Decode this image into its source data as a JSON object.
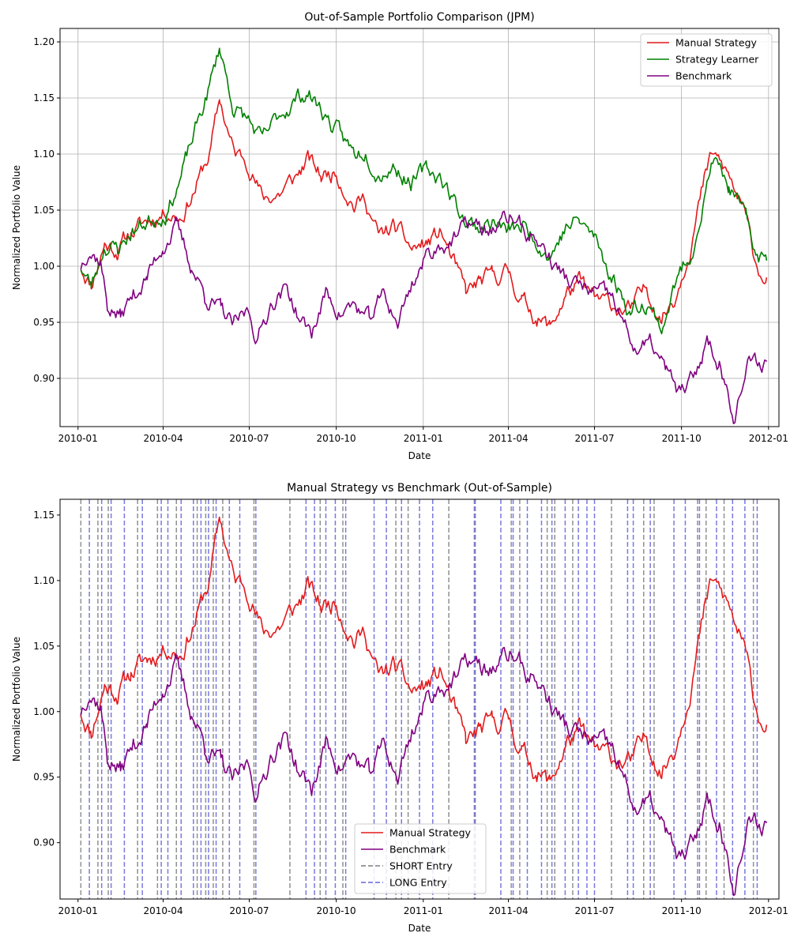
{
  "chart_data": [
    {
      "type": "line",
      "title": "Out-of-Sample Portfolio Comparison (JPM)",
      "xlabel": "Date",
      "ylabel": "Normalized Portfolio Value",
      "x_ticks": [
        "2010-01",
        "2010-04",
        "2010-07",
        "2010-10",
        "2011-01",
        "2011-04",
        "2011-07",
        "2011-10",
        "2012-01"
      ],
      "y_ticks": [
        "0.90",
        "0.95",
        "1.00",
        "1.05",
        "1.10",
        "1.15",
        "1.20"
      ],
      "xlim": [
        "2009-12-13",
        "2012-01-12"
      ],
      "ylim": [
        0.857,
        1.212
      ],
      "grid": true,
      "legend_position": "top-right",
      "series": [
        {
          "name": "Manual Strategy",
          "color": "#e41a1c",
          "points": [
            [
              "2010-01-04",
              1.0
            ],
            [
              "2010-01-15",
              0.985
            ],
            [
              "2010-01-29",
              1.02
            ],
            [
              "2010-02-12",
              1.015
            ],
            [
              "2010-02-26",
              1.03
            ],
            [
              "2010-03-15",
              1.04
            ],
            [
              "2010-04-05",
              1.05
            ],
            [
              "2010-04-20",
              1.045
            ],
            [
              "2010-05-05",
              1.07
            ],
            [
              "2010-05-20",
              1.1
            ],
            [
              "2010-05-31",
              1.148
            ],
            [
              "2010-06-15",
              1.1
            ],
            [
              "2010-06-30",
              1.095
            ],
            [
              "2010-07-15",
              1.06
            ],
            [
              "2010-08-02",
              1.065
            ],
            [
              "2010-08-20",
              1.08
            ],
            [
              "2010-09-01",
              1.095
            ],
            [
              "2010-09-15",
              1.08
            ],
            [
              "2010-10-01",
              1.085
            ],
            [
              "2010-10-20",
              1.055
            ],
            [
              "2010-11-01",
              1.06
            ],
            [
              "2010-11-15",
              1.025
            ],
            [
              "2010-12-01",
              1.035
            ],
            [
              "2010-12-20",
              1.015
            ],
            [
              "2011-01-05",
              1.02
            ],
            [
              "2011-01-20",
              1.03
            ],
            [
              "2011-02-01",
              1.005
            ],
            [
              "2011-02-15",
              0.975
            ],
            [
              "2011-03-01",
              0.985
            ],
            [
              "2011-03-15",
              0.99
            ],
            [
              "2011-04-01",
              0.995
            ],
            [
              "2011-04-15",
              0.97
            ],
            [
              "2011-05-01",
              0.955
            ],
            [
              "2011-05-15",
              0.945
            ],
            [
              "2011-06-01",
              0.975
            ],
            [
              "2011-06-15",
              0.985
            ],
            [
              "2011-07-01",
              0.97
            ],
            [
              "2011-07-20",
              0.965
            ],
            [
              "2011-08-08",
              0.96
            ],
            [
              "2011-08-25",
              0.98
            ],
            [
              "2011-09-10",
              0.955
            ],
            [
              "2011-09-25",
              0.975
            ],
            [
              "2011-10-10",
              1.02
            ],
            [
              "2011-10-25",
              1.075
            ],
            [
              "2011-11-03",
              1.1
            ],
            [
              "2011-11-20",
              1.08
            ],
            [
              "2011-12-05",
              1.05
            ],
            [
              "2011-12-20",
              1.0
            ],
            [
              "2011-12-30",
              0.99
            ]
          ]
        },
        {
          "name": "Strategy Learner",
          "color": "#008000",
          "points": [
            [
              "2010-01-04",
              1.0
            ],
            [
              "2010-01-15",
              0.982
            ],
            [
              "2010-01-29",
              1.02
            ],
            [
              "2010-02-12",
              1.015
            ],
            [
              "2010-02-26",
              1.03
            ],
            [
              "2010-03-15",
              1.04
            ],
            [
              "2010-04-05",
              1.05
            ],
            [
              "2010-04-20",
              1.08
            ],
            [
              "2010-05-05",
              1.12
            ],
            [
              "2010-05-20",
              1.16
            ],
            [
              "2010-05-31",
              1.195
            ],
            [
              "2010-06-15",
              1.14
            ],
            [
              "2010-06-30",
              1.13
            ],
            [
              "2010-07-15",
              1.11
            ],
            [
              "2010-08-02",
              1.135
            ],
            [
              "2010-08-20",
              1.15
            ],
            [
              "2010-09-01",
              1.155
            ],
            [
              "2010-09-15",
              1.14
            ],
            [
              "2010-10-01",
              1.12
            ],
            [
              "2010-10-20",
              1.1
            ],
            [
              "2010-11-01",
              1.105
            ],
            [
              "2010-11-15",
              1.085
            ],
            [
              "2010-12-01",
              1.09
            ],
            [
              "2010-12-20",
              1.075
            ],
            [
              "2011-01-05",
              1.085
            ],
            [
              "2011-01-20",
              1.08
            ],
            [
              "2011-02-01",
              1.06
            ],
            [
              "2011-02-15",
              1.04
            ],
            [
              "2011-03-01",
              1.035
            ],
            [
              "2011-03-15",
              1.04
            ],
            [
              "2011-04-01",
              1.03
            ],
            [
              "2011-04-15",
              1.035
            ],
            [
              "2011-05-01",
              1.025
            ],
            [
              "2011-05-15",
              1.01
            ],
            [
              "2011-06-01",
              1.035
            ],
            [
              "2011-06-15",
              1.04
            ],
            [
              "2011-07-01",
              1.025
            ],
            [
              "2011-07-20",
              0.99
            ],
            [
              "2011-08-08",
              0.96
            ],
            [
              "2011-08-25",
              0.97
            ],
            [
              "2011-09-10",
              0.945
            ],
            [
              "2011-09-25",
              0.985
            ],
            [
              "2011-10-10",
              1.01
            ],
            [
              "2011-10-25",
              1.06
            ],
            [
              "2011-11-03",
              1.095
            ],
            [
              "2011-11-20",
              1.07
            ],
            [
              "2011-12-05",
              1.045
            ],
            [
              "2011-12-20",
              1.01
            ],
            [
              "2011-12-30",
              1.005
            ]
          ]
        },
        {
          "name": "Benchmark",
          "color": "#800080",
          "points": [
            [
              "2010-01-04",
              1.0
            ],
            [
              "2010-01-12",
              1.018
            ],
            [
              "2010-01-25",
              1.005
            ],
            [
              "2010-02-01",
              0.965
            ],
            [
              "2010-02-15",
              0.955
            ],
            [
              "2010-03-01",
              0.975
            ],
            [
              "2010-03-15",
              0.99
            ],
            [
              "2010-04-01",
              1.02
            ],
            [
              "2010-04-15",
              1.035
            ],
            [
              "2010-05-01",
              1.0
            ],
            [
              "2010-05-15",
              0.975
            ],
            [
              "2010-06-01",
              0.96
            ],
            [
              "2010-06-15",
              0.945
            ],
            [
              "2010-06-30",
              0.96
            ],
            [
              "2010-07-10",
              0.935
            ],
            [
              "2010-07-25",
              0.97
            ],
            [
              "2010-08-10",
              0.98
            ],
            [
              "2010-08-25",
              0.95
            ],
            [
              "2010-09-05",
              0.94
            ],
            [
              "2010-09-20",
              0.975
            ],
            [
              "2010-10-05",
              0.96
            ],
            [
              "2010-10-20",
              0.965
            ],
            [
              "2010-11-05",
              0.95
            ],
            [
              "2010-11-20",
              0.975
            ],
            [
              "2010-12-05",
              0.95
            ],
            [
              "2010-12-20",
              0.985
            ],
            [
              "2011-01-05",
              1.01
            ],
            [
              "2011-01-20",
              1.02
            ],
            [
              "2011-02-05",
              1.025
            ],
            [
              "2011-02-20",
              1.04
            ],
            [
              "2011-03-05",
              1.03
            ],
            [
              "2011-03-20",
              1.035
            ],
            [
              "2011-04-05",
              1.045
            ],
            [
              "2011-04-20",
              1.03
            ],
            [
              "2011-05-05",
              1.02
            ],
            [
              "2011-05-20",
              1.0
            ],
            [
              "2011-06-05",
              0.985
            ],
            [
              "2011-06-20",
              0.98
            ],
            [
              "2011-07-05",
              0.975
            ],
            [
              "2011-07-20",
              0.97
            ],
            [
              "2011-08-05",
              0.94
            ],
            [
              "2011-08-15",
              0.925
            ],
            [
              "2011-08-30",
              0.93
            ],
            [
              "2011-09-15",
              0.905
            ],
            [
              "2011-09-30",
              0.885
            ],
            [
              "2011-10-15",
              0.9
            ],
            [
              "2011-10-28",
              0.935
            ],
            [
              "2011-11-10",
              0.915
            ],
            [
              "2011-11-25",
              0.87
            ],
            [
              "2011-12-10",
              0.91
            ],
            [
              "2011-12-30",
              0.915
            ]
          ]
        }
      ]
    },
    {
      "type": "line",
      "title": "Manual Strategy vs Benchmark (Out-of-Sample)",
      "xlabel": "Date",
      "ylabel": "Normalized Portfolio Value",
      "x_ticks": [
        "2010-01",
        "2010-04",
        "2010-07",
        "2010-10",
        "2011-01",
        "2011-04",
        "2011-07",
        "2011-10",
        "2012-01"
      ],
      "y_ticks": [
        "0.90",
        "0.95",
        "1.00",
        "1.05",
        "1.10",
        "1.15"
      ],
      "xlim": [
        "2009-12-13",
        "2012-01-12"
      ],
      "ylim": [
        0.857,
        1.162
      ],
      "grid": false,
      "legend_position": "lower-center",
      "series": [
        {
          "name": "Manual Strategy",
          "color": "#e41a1c",
          "same_as_top": "Manual Strategy"
        },
        {
          "name": "Benchmark",
          "color": "#800080",
          "same_as_top": "Benchmark"
        },
        {
          "name": "SHORT Entry",
          "color": "#555555",
          "style": "dashed-vertical",
          "dates": [
            "2010-01-04",
            "2010-01-22",
            "2010-02-02",
            "2010-03-05",
            "2010-03-26",
            "2010-04-15",
            "2010-05-07",
            "2010-05-16",
            "2010-05-24",
            "2010-06-03",
            "2010-07-06",
            "2010-08-13",
            "2010-09-14",
            "2010-10-08",
            "2010-12-03",
            "2010-12-16",
            "2011-01-28",
            "2011-02-25",
            "2011-04-04",
            "2011-04-13",
            "2011-05-12",
            "2011-05-20",
            "2011-06-08",
            "2011-07-19",
            "2011-08-22",
            "2011-09-02",
            "2011-10-18",
            "2011-10-27",
            "2011-11-15",
            "2011-12-16"
          ]
        },
        {
          "name": "LONG Entry",
          "color": "#3333cc",
          "style": "dashed-vertical",
          "dates": [
            "2010-01-13",
            "2010-01-26",
            "2010-02-05",
            "2010-02-19",
            "2010-03-10",
            "2010-03-30",
            "2010-04-06",
            "2010-04-20",
            "2010-05-03",
            "2010-05-11",
            "2010-05-19",
            "2010-05-27",
            "2010-06-10",
            "2010-06-21",
            "2010-07-08",
            "2010-08-30",
            "2010-09-08",
            "2010-09-20",
            "2010-09-30",
            "2010-10-11",
            "2010-11-10",
            "2010-11-23",
            "2010-12-09",
            "2010-12-28",
            "2011-01-11",
            "2011-02-24",
            "2011-03-24",
            "2011-04-06",
            "2011-04-21",
            "2011-05-06",
            "2011-05-17",
            "2011-05-31",
            "2011-06-14",
            "2011-06-23",
            "2011-07-01",
            "2011-08-05",
            "2011-08-11",
            "2011-08-29",
            "2011-09-23",
            "2011-10-05",
            "2011-10-20",
            "2011-11-07",
            "2011-11-24",
            "2011-12-07",
            "2011-12-20"
          ]
        }
      ]
    }
  ]
}
